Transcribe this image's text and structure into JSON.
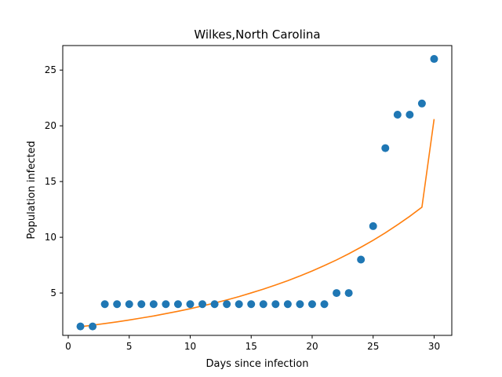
{
  "chart_data": {
    "type": "scatter",
    "title": "Wilkes,North Carolina",
    "xlabel": "Days since infection",
    "ylabel": "Population infected",
    "xlim": [
      -0.45,
      31.45
    ],
    "ylim": [
      1.2,
      27.2
    ],
    "xticks": [
      0,
      5,
      10,
      15,
      20,
      25,
      30
    ],
    "yticks": [
      5,
      10,
      15,
      20,
      25
    ],
    "grid": false,
    "series": [
      {
        "kind": "scatter",
        "color": "#1f77b4",
        "x": [
          1,
          2,
          3,
          4,
          5,
          6,
          7,
          8,
          9,
          10,
          11,
          12,
          13,
          14,
          15,
          16,
          17,
          18,
          19,
          20,
          21,
          22,
          23,
          24,
          25,
          26,
          27,
          28,
          29,
          30
        ],
        "y": [
          2,
          2,
          4,
          4,
          4,
          4,
          4,
          4,
          4,
          4,
          4,
          4,
          4,
          4,
          4,
          4,
          4,
          4,
          4,
          4,
          4,
          5,
          5,
          8,
          11,
          18,
          21,
          21,
          22,
          26
        ]
      },
      {
        "kind": "line",
        "color": "#ff7f0e",
        "x": [
          1,
          2,
          3,
          4,
          5,
          6,
          7,
          8,
          9,
          10,
          11,
          12,
          13,
          14,
          15,
          16,
          17,
          18,
          19,
          20,
          21,
          22,
          23,
          24,
          25,
          26,
          27,
          28,
          29,
          30
        ],
        "y": [
          1.98,
          2.11,
          2.26,
          2.41,
          2.58,
          2.76,
          2.94,
          3.15,
          3.36,
          3.59,
          3.84,
          4.1,
          4.38,
          4.68,
          5.01,
          5.35,
          5.72,
          6.11,
          6.53,
          6.98,
          7.46,
          7.97,
          8.52,
          9.11,
          9.73,
          10.4,
          11.12,
          11.88,
          12.7,
          20.6
        ]
      }
    ]
  }
}
